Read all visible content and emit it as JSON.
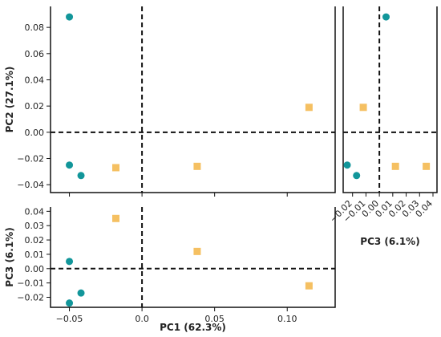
{
  "chart_data": [
    {
      "type": "scatter",
      "panel": "main",
      "xlabel": "",
      "ylabel": "PC2 (27.1%)",
      "x_axis": "PC1",
      "y_axis": "PC2",
      "xlim": [
        -0.063,
        0.133
      ],
      "ylim": [
        -0.046,
        0.096
      ],
      "xticks": [
        -0.05,
        0.0,
        0.05,
        0.1
      ],
      "yticks": [
        0.08,
        0.06,
        0.04,
        0.02,
        0.0,
        -0.02,
        -0.04
      ],
      "yticklabels": [
        "0.08",
        "0.06",
        "0.04",
        "0.02",
        "0.00",
        "−0.02",
        "−0.04"
      ],
      "reference_lines": {
        "x": 0,
        "y": 0
      },
      "series": [
        {
          "color": "#12969a",
          "marker": "circle",
          "x": [
            -0.05,
            -0.05,
            -0.042
          ],
          "y": [
            0.088,
            -0.025,
            -0.033
          ]
        },
        {
          "color": "#f5c062",
          "marker": "square",
          "x": [
            -0.018,
            0.038,
            0.115
          ],
          "y": [
            -0.027,
            -0.026,
            0.019
          ]
        }
      ]
    },
    {
      "type": "scatter",
      "panel": "bottom",
      "xlabel": "PC1 (62.3%)",
      "ylabel": "PC3 (6.1%)",
      "x_axis": "PC1",
      "y_axis": "PC3",
      "xlim": [
        -0.063,
        0.133
      ],
      "ylim": [
        -0.027,
        0.043
      ],
      "xticks": [
        -0.05,
        0.0,
        0.05,
        0.1
      ],
      "xticklabels": [
        "−0.05",
        "0.0",
        "0.05",
        "0.10"
      ],
      "yticks": [
        0.04,
        0.03,
        0.02,
        0.01,
        0.0,
        -0.01,
        -0.02
      ],
      "yticklabels": [
        "0.04",
        "0.03",
        "0.02",
        "0.01",
        "0.00",
        "−0.01",
        "−0.02"
      ],
      "reference_lines": {
        "x": 0,
        "y": 0
      },
      "series": [
        {
          "color": "#12969a",
          "marker": "circle",
          "x": [
            -0.05,
            -0.05,
            -0.042
          ],
          "y": [
            0.005,
            -0.024,
            -0.017
          ]
        },
        {
          "color": "#f5c062",
          "marker": "square",
          "x": [
            -0.018,
            0.038,
            0.115
          ],
          "y": [
            0.035,
            0.012,
            -0.012
          ]
        }
      ]
    },
    {
      "type": "scatter",
      "panel": "right",
      "xlabel": "PC3 (6.1%)",
      "ylabel": "",
      "x_axis": "PC3",
      "y_axis": "PC2",
      "xlim": [
        -0.027,
        0.043
      ],
      "ylim": [
        -0.046,
        0.096
      ],
      "xticks": [
        -0.02,
        -0.01,
        0.0,
        0.01,
        0.02,
        0.03,
        0.04
      ],
      "xticklabels": [
        "−0.02",
        "−0.01",
        "0.00",
        "0.01",
        "0.02",
        "0.03",
        "0.04"
      ],
      "reference_lines": {
        "x": 0,
        "y": 0
      },
      "series": [
        {
          "color": "#12969a",
          "marker": "circle",
          "x": [
            0.005,
            -0.024,
            -0.017
          ],
          "y": [
            0.088,
            -0.025,
            -0.033
          ]
        },
        {
          "color": "#f5c062",
          "marker": "square",
          "x": [
            -0.012,
            0.012,
            0.035
          ],
          "y": [
            0.019,
            -0.026,
            -0.026
          ]
        }
      ]
    }
  ]
}
